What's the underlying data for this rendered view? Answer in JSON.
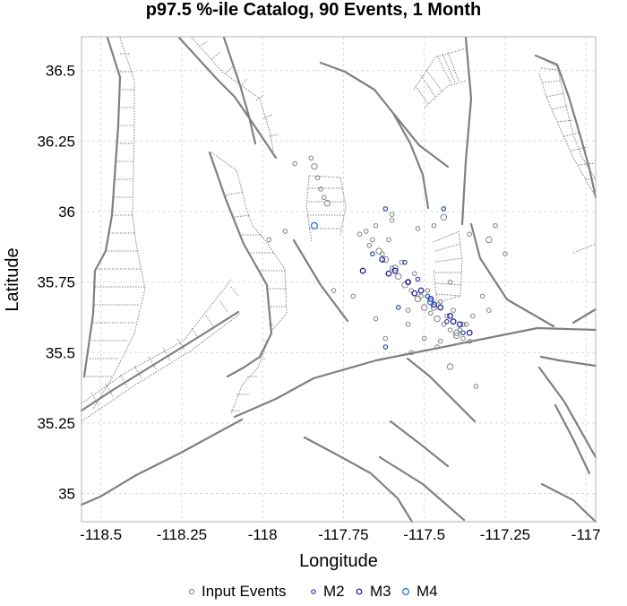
{
  "chart_data": {
    "type": "scatter",
    "title": "p97.5 %-ile Catalog, 90 Events, 1 Month",
    "xlabel": "Longitude",
    "ylabel": "Latitude",
    "xlim": [
      -118.56,
      -116.97
    ],
    "ylim": [
      34.9,
      36.62
    ],
    "x_ticks": [
      -118.5,
      -118.25,
      -118,
      -117.75,
      -117.5,
      -117.25,
      -117
    ],
    "x_tick_labels": [
      "-118.5",
      "-118.25",
      "-118",
      "-117.75",
      "-117.5",
      "-117.25",
      "-117"
    ],
    "y_ticks": [
      35,
      35.25,
      35.5,
      35.75,
      36,
      36.25,
      36.5
    ],
    "y_tick_labels": [
      "35",
      "35.25",
      "35.5",
      "35.75",
      "36",
      "36.25",
      "36.5"
    ],
    "grid": true,
    "legend_position": "bottom",
    "colors": {
      "input_events": "#808080",
      "M2": "#1f4aa8",
      "M3": "#1a14a0",
      "M4": "#1e6fd6",
      "fault": "#808080",
      "grid": "#d9d9d9",
      "frame": "#b3b3b3"
    },
    "series": [
      {
        "name": "Input Events",
        "x": [
          -117.68,
          -117.66,
          -117.64,
          -117.62,
          -117.6,
          -117.58,
          -117.56,
          -117.54,
          -117.52,
          -117.5,
          -117.48,
          -117.46,
          -117.44,
          -117.42,
          -117.4,
          -117.38,
          -117.36,
          -117.7,
          -117.67,
          -117.63,
          -117.59,
          -117.55,
          -117.51,
          -117.47,
          -117.43,
          -117.39,
          -117.65,
          -117.61,
          -117.57,
          -117.53,
          -117.49,
          -117.45,
          -117.41,
          -117.37,
          -117.85,
          -117.84,
          -117.83,
          -117.82,
          -117.81,
          -117.8,
          -117.55,
          -117.5,
          -117.45,
          -117.4,
          -117.35,
          -117.3,
          -117.6,
          -117.52,
          -117.44,
          -117.36,
          -117.62,
          -117.54,
          -117.46,
          -117.38,
          -117.3,
          -117.28,
          -117.25,
          -117.32,
          -117.42,
          -117.47,
          -117.55,
          -117.65,
          -117.72,
          -117.78,
          -117.9,
          -117.93,
          -117.98,
          -117.6,
          -117.42,
          -117.34
        ],
        "y": [
          35.93,
          35.9,
          35.86,
          35.83,
          35.8,
          35.77,
          35.74,
          35.72,
          35.69,
          35.66,
          35.64,
          35.62,
          35.6,
          35.58,
          35.56,
          35.55,
          35.54,
          35.92,
          35.88,
          35.85,
          35.8,
          35.75,
          35.7,
          35.66,
          35.63,
          35.58,
          35.95,
          35.9,
          35.82,
          35.78,
          35.72,
          35.68,
          35.65,
          35.6,
          36.19,
          36.16,
          36.12,
          36.08,
          36.05,
          36.03,
          35.6,
          35.55,
          35.54,
          35.57,
          35.63,
          35.65,
          35.97,
          35.94,
          35.98,
          35.92,
          35.55,
          35.5,
          35.52,
          35.6,
          35.9,
          35.95,
          35.85,
          35.7,
          35.75,
          35.95,
          35.65,
          35.62,
          35.7,
          35.72,
          36.17,
          35.93,
          35.9,
          35.99,
          35.45,
          35.38
        ],
        "size": [
          1,
          1,
          2,
          2,
          1,
          2,
          2,
          1,
          2,
          2,
          1,
          2,
          1,
          1,
          2,
          1,
          1,
          1,
          1,
          1,
          2,
          1,
          1,
          2,
          1,
          1,
          1,
          1,
          1,
          1,
          1,
          1,
          1,
          1,
          1,
          2,
          1,
          1,
          1,
          2,
          1,
          1,
          1,
          2,
          1,
          1,
          1,
          1,
          2,
          1,
          1,
          1,
          1,
          1,
          2,
          1,
          1,
          1,
          1,
          1,
          1,
          1,
          1,
          1,
          1,
          1,
          1,
          1,
          2,
          1
        ]
      },
      {
        "name": "M2",
        "x": [
          -117.62,
          -117.56,
          -117.49,
          -117.43,
          -117.66,
          -117.52,
          -117.38,
          -117.62,
          -117.58,
          -117.44
        ],
        "y": [
          36.01,
          35.82,
          35.7,
          35.61,
          35.85,
          35.76,
          35.57,
          35.52,
          35.66,
          36.01
        ]
      },
      {
        "name": "M3",
        "x": [
          -117.63,
          -117.59,
          -117.55,
          -117.51,
          -117.48,
          -117.45,
          -117.42,
          -117.39,
          -117.36,
          -117.61,
          -117.53,
          -117.47,
          -117.41,
          -117.69
        ],
        "y": [
          35.83,
          35.79,
          35.75,
          35.72,
          35.69,
          35.66,
          35.63,
          35.6,
          35.57,
          35.78,
          35.71,
          35.67,
          35.61,
          35.79
        ]
      },
      {
        "name": "M4",
        "x": [
          -117.84,
          -117.48
        ],
        "y": [
          35.95,
          35.68
        ]
      }
    ]
  }
}
